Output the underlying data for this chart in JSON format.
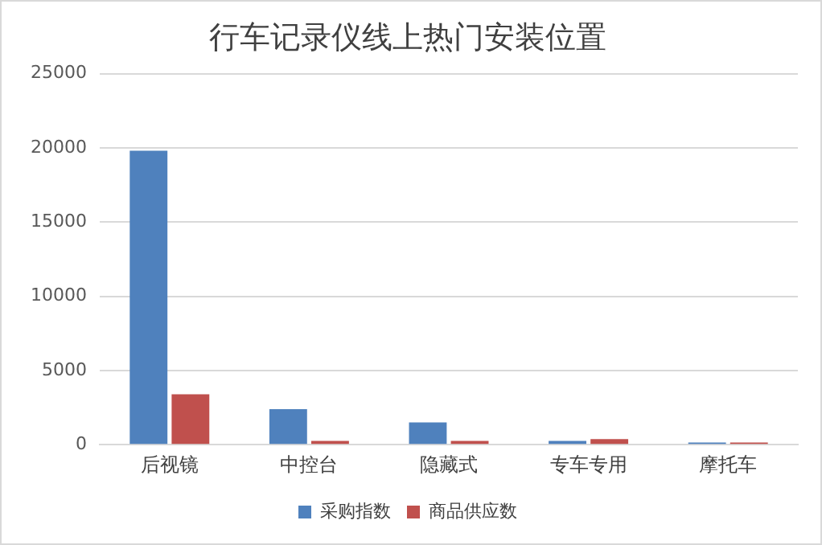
{
  "chart_data": {
    "type": "bar",
    "title": "行车记录仪线上热门安装位置",
    "categories": [
      "后视镜",
      "中控台",
      "隐藏式",
      "专车专用",
      "摩托车"
    ],
    "series": [
      {
        "name": "采购指数",
        "color": "#4f81bd",
        "values": [
          19800,
          2400,
          1500,
          250,
          150
        ]
      },
      {
        "name": "商品供应数",
        "color": "#c0504d",
        "values": [
          3400,
          250,
          250,
          380,
          150
        ]
      }
    ],
    "ylim": [
      0,
      25000
    ],
    "yticks": [
      0,
      5000,
      10000,
      15000,
      20000,
      25000
    ],
    "grid": "y",
    "legend": "bottom"
  }
}
